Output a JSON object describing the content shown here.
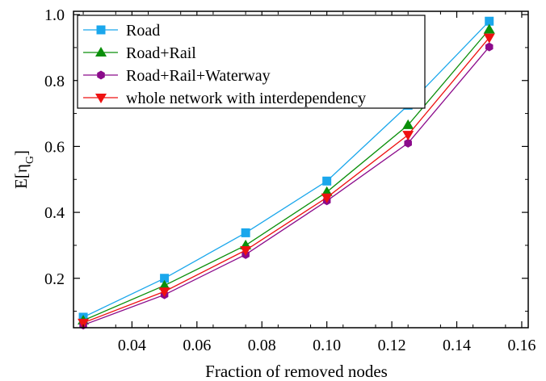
{
  "chart_data": {
    "type": "line",
    "xlabel": "Fraction of removed nodes",
    "ylabel_main": "E[η",
    "ylabel_sub": "G",
    "ylabel_close": "]",
    "xlim": [
      0.022,
      0.162
    ],
    "ylim": [
      0.05,
      1.01
    ],
    "x_ticks": [
      0.04,
      0.06,
      0.08,
      0.1,
      0.12,
      0.14,
      0.16
    ],
    "x_tick_labels": [
      "0.04",
      "0.06",
      "0.08",
      "0.10",
      "0.12",
      "0.14",
      "0.16"
    ],
    "y_ticks": [
      0.2,
      0.4,
      0.6,
      0.8,
      1.0
    ],
    "y_tick_labels": [
      "0.2",
      "0.4",
      "0.6",
      "0.8",
      "1.0"
    ],
    "legend_position": "top-left",
    "grid": false,
    "x": [
      0.025,
      0.05,
      0.075,
      0.1,
      0.125,
      0.15
    ],
    "series": [
      {
        "name": "Road",
        "color": "#1aa7ec",
        "marker": "square",
        "values": [
          0.082,
          0.2,
          0.338,
          0.495,
          0.725,
          0.98
        ]
      },
      {
        "name": "Road+Rail",
        "color": "#0a8f0a",
        "marker": "triangle-up",
        "values": [
          0.072,
          0.178,
          0.3,
          0.462,
          0.665,
          0.955
        ]
      },
      {
        "name": "Road+Rail+Waterway",
        "color": "#8b0a8b",
        "marker": "hexagon",
        "values": [
          0.058,
          0.15,
          0.272,
          0.435,
          0.61,
          0.902
        ]
      },
      {
        "name": "whole network with interdependency",
        "color": "#ee1111",
        "marker": "triangle-down",
        "values": [
          0.065,
          0.16,
          0.285,
          0.445,
          0.635,
          0.93
        ]
      }
    ]
  }
}
